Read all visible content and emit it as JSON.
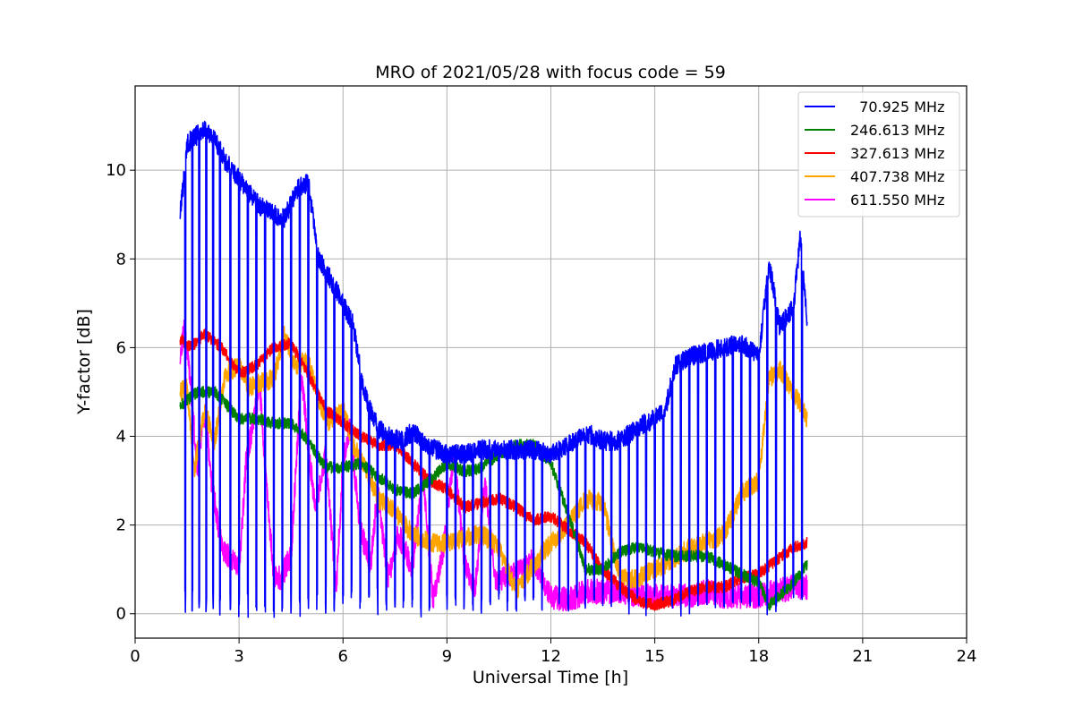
{
  "chart_data": {
    "type": "line",
    "title": "MRO of 2021/05/28 with focus code = 59",
    "xlabel": "Universal Time [h]",
    "ylabel": "Y-factor [dB]",
    "xlim": [
      0,
      24
    ],
    "ylim": [
      -0.55,
      11.9
    ],
    "xticks": [
      0,
      3,
      6,
      9,
      12,
      15,
      18,
      21,
      24
    ],
    "yticks": [
      0,
      2,
      4,
      6,
      8,
      10
    ],
    "grid": true,
    "legend_position": "upper-right",
    "series": [
      {
        "name": "  70.925 MHz",
        "color": "#0000ff",
        "x": [
          1.3,
          1.5,
          1.8,
          2.0,
          2.3,
          2.6,
          3.0,
          3.3,
          3.6,
          4.0,
          4.3,
          4.7,
          5.0,
          5.3,
          5.6,
          6.0,
          6.3,
          6.6,
          7.0,
          7.3,
          7.7,
          8.0,
          8.3,
          8.7,
          9.0,
          9.5,
          10.0,
          10.5,
          11.0,
          11.5,
          12.0,
          12.5,
          13.0,
          13.5,
          14.0,
          14.5,
          15.0,
          15.3,
          15.6,
          16.0,
          16.5,
          17.0,
          17.5,
          18.0,
          18.3,
          18.6,
          19.0,
          19.2,
          19.4
        ],
        "values": [
          9.0,
          10.6,
          10.8,
          10.9,
          10.7,
          10.2,
          9.8,
          9.5,
          9.2,
          9.0,
          8.9,
          9.6,
          9.7,
          8.0,
          7.6,
          7.0,
          6.5,
          5.0,
          4.2,
          4.0,
          3.9,
          4.1,
          3.9,
          3.7,
          3.6,
          3.6,
          3.7,
          3.7,
          3.7,
          3.7,
          3.6,
          3.8,
          4.1,
          3.9,
          3.9,
          4.2,
          4.4,
          4.6,
          5.6,
          5.8,
          5.9,
          6.0,
          6.1,
          5.8,
          7.9,
          6.5,
          6.9,
          8.5,
          6.5
        ],
        "dropouts": [
          1.45,
          1.65,
          1.85,
          2.05,
          2.25,
          2.45,
          2.75,
          3.0,
          3.25,
          3.5,
          3.75,
          4.0,
          4.25,
          4.5,
          4.75,
          5.0,
          5.25,
          5.5,
          5.75,
          6.0,
          6.25,
          6.5,
          6.75,
          7.0,
          7.25,
          7.5,
          7.75,
          8.0,
          8.25,
          8.5,
          9.0,
          9.25,
          9.5,
          9.75,
          10.0,
          10.25,
          10.5,
          10.75,
          11.0,
          11.25,
          11.5,
          11.75,
          12.25,
          12.5,
          12.75,
          13.0,
          13.25,
          13.5,
          13.75,
          14.0,
          14.25,
          14.5,
          14.75,
          15.0,
          15.25,
          15.5,
          15.75,
          16.0,
          16.25,
          16.5,
          16.75,
          17.0,
          17.25,
          17.5,
          17.75,
          18.0,
          18.25,
          18.5,
          18.75,
          19.0,
          19.25
        ],
        "dropout_min": 0.1
      },
      {
        "name": "246.613 MHz",
        "color": "#008000",
        "x": [
          1.3,
          1.8,
          2.3,
          3.0,
          3.5,
          4.0,
          4.5,
          5.0,
          5.5,
          6.0,
          6.5,
          7.0,
          7.5,
          8.0,
          8.5,
          9.0,
          9.5,
          10.0,
          10.5,
          11.0,
          11.5,
          12.0,
          12.3,
          12.6,
          13.0,
          13.5,
          14.0,
          14.5,
          15.0,
          15.5,
          16.0,
          16.5,
          17.0,
          17.5,
          18.0,
          18.3,
          18.6,
          19.0,
          19.4
        ],
        "values": [
          4.7,
          5.0,
          5.0,
          4.4,
          4.4,
          4.3,
          4.3,
          3.9,
          3.3,
          3.3,
          3.4,
          3.1,
          2.8,
          2.7,
          3.0,
          3.4,
          3.2,
          3.3,
          3.6,
          3.8,
          3.8,
          3.4,
          2.7,
          2.0,
          1.0,
          1.0,
          1.4,
          1.5,
          1.4,
          1.3,
          1.3,
          1.3,
          1.1,
          0.9,
          0.7,
          0.2,
          0.4,
          0.7,
          1.1
        ],
        "dropouts": [],
        "dropout_min": 0
      },
      {
        "name": "327.613 MHz",
        "color": "#ff0000",
        "x": [
          1.3,
          1.6,
          2.0,
          2.5,
          3.0,
          3.5,
          4.0,
          4.5,
          5.0,
          5.5,
          6.0,
          6.5,
          7.0,
          7.5,
          8.0,
          8.5,
          9.0,
          9.5,
          10.0,
          10.5,
          11.0,
          11.5,
          12.0,
          12.5,
          13.0,
          13.5,
          14.0,
          14.5,
          15.0,
          15.5,
          16.0,
          16.5,
          17.0,
          17.5,
          18.0,
          18.5,
          19.0,
          19.4
        ],
        "values": [
          6.2,
          6.0,
          6.3,
          6.0,
          5.4,
          5.6,
          6.0,
          6.1,
          5.4,
          4.6,
          4.3,
          4.0,
          3.8,
          3.8,
          3.4,
          3.0,
          2.8,
          2.4,
          2.5,
          2.6,
          2.4,
          2.1,
          2.2,
          1.9,
          1.6,
          1.0,
          0.6,
          0.3,
          0.2,
          0.3,
          0.5,
          0.6,
          0.6,
          0.8,
          0.9,
          1.2,
          1.5,
          1.6
        ],
        "dropouts": [],
        "dropout_min": 0
      },
      {
        "name": "407.738 MHz",
        "color": "#ffa500",
        "x": [
          1.3,
          1.5,
          1.7,
          2.0,
          2.3,
          2.6,
          3.0,
          3.3,
          3.6,
          4.0,
          4.3,
          4.6,
          5.0,
          5.3,
          5.6,
          6.0,
          6.3,
          6.6,
          7.0,
          7.5,
          8.0,
          8.5,
          9.0,
          9.5,
          10.0,
          10.5,
          11.0,
          11.5,
          12.0,
          12.5,
          13.0,
          13.5,
          14.0,
          14.5,
          15.0,
          15.5,
          16.0,
          16.5,
          17.0,
          17.5,
          18.0,
          18.3,
          18.6,
          19.0,
          19.4
        ],
        "values": [
          5.0,
          5.1,
          3.2,
          4.6,
          3.9,
          5.4,
          5.6,
          5.1,
          5.2,
          5.3,
          6.3,
          5.6,
          5.7,
          4.8,
          4.3,
          4.6,
          3.8,
          3.4,
          2.6,
          2.3,
          1.8,
          1.6,
          1.6,
          1.7,
          1.8,
          1.5,
          0.5,
          1.1,
          1.6,
          2.0,
          2.6,
          2.5,
          0.8,
          0.8,
          1.0,
          1.2,
          1.5,
          1.6,
          1.8,
          2.7,
          3.0,
          5.3,
          5.5,
          5.0,
          4.4
        ],
        "dropouts": [],
        "dropout_min": 0
      },
      {
        "name": "611.550 MHz",
        "color": "#ff00ff",
        "x": [
          1.3,
          1.4,
          1.6,
          1.8,
          2.0,
          2.2,
          2.5,
          2.8,
          3.0,
          3.2,
          3.4,
          3.6,
          3.8,
          4.0,
          4.2,
          4.5,
          4.8,
          5.0,
          5.2,
          5.5,
          5.8,
          6.0,
          6.2,
          6.5,
          6.8,
          7.0,
          7.3,
          7.6,
          8.0,
          8.3,
          8.6,
          8.9,
          9.2,
          9.5,
          9.8,
          10.1,
          10.4,
          10.7,
          11.0,
          11.5,
          12.0,
          12.5,
          13.0,
          13.5,
          14.0,
          14.5,
          15.0,
          15.5,
          16.0,
          16.5,
          17.0,
          17.5,
          18.0,
          18.5,
          19.0,
          19.4
        ],
        "values": [
          5.6,
          6.5,
          5.2,
          3.2,
          4.6,
          3.0,
          1.5,
          1.2,
          1.0,
          3.4,
          4.3,
          5.1,
          2.8,
          0.9,
          0.8,
          1.3,
          5.5,
          3.7,
          2.4,
          3.6,
          0.5,
          3.4,
          4.2,
          1.9,
          1.1,
          2.8,
          0.8,
          1.8,
          1.0,
          3.2,
          0.3,
          1.5,
          3.6,
          1.2,
          0.5,
          3.0,
          0.7,
          0.8,
          0.9,
          1.2,
          0.4,
          0.3,
          0.5,
          0.5,
          0.5,
          0.4,
          0.4,
          0.4,
          0.4,
          0.5,
          0.4,
          0.4,
          0.4,
          0.5,
          0.6,
          0.6
        ],
        "dropouts": [],
        "dropout_min": 0
      }
    ]
  }
}
